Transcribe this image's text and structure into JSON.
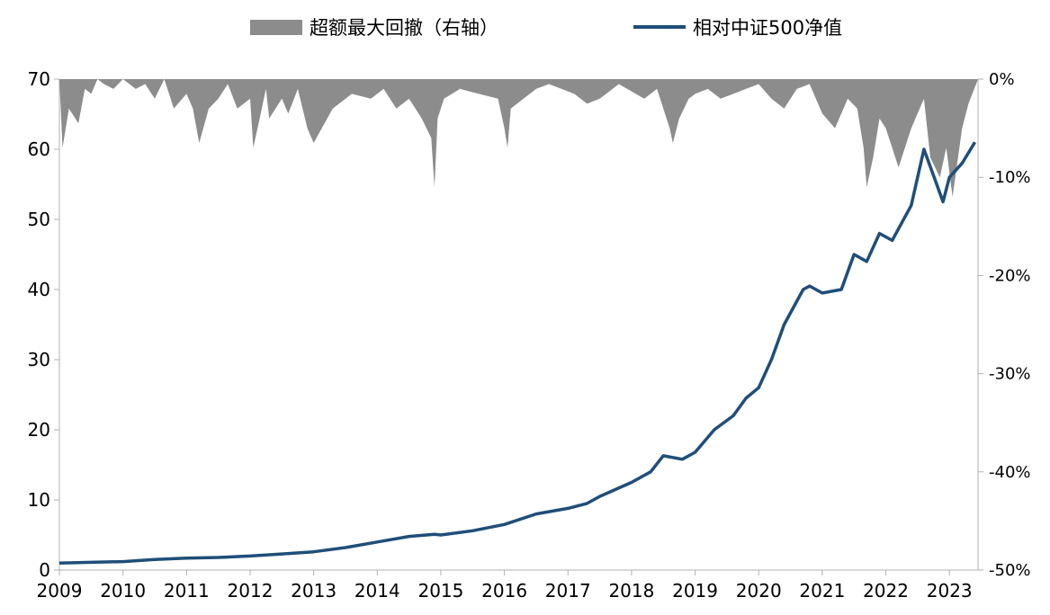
{
  "chart_data": {
    "type": "line",
    "legend": {
      "placement": "top-center",
      "items": [
        {
          "label": "超额最大回撤（右轴）",
          "kind": "area",
          "color": "#8c8c8c"
        },
        {
          "label": "相对中证500净值",
          "kind": "line",
          "color": "#1f4e79"
        }
      ]
    },
    "x_ticks": [
      "2009",
      "2010",
      "2011",
      "2012",
      "2013",
      "2014",
      "2015",
      "2016",
      "2017",
      "2018",
      "2019",
      "2020",
      "2021",
      "2022",
      "2023"
    ],
    "y_left": {
      "ylim": [
        0,
        70
      ],
      "ticks": [
        "0",
        "10",
        "20",
        "30",
        "40",
        "50",
        "60",
        "70"
      ]
    },
    "y_right": {
      "ylim": [
        -0.5,
        0
      ],
      "ticks": [
        "-50%",
        "-40%",
        "-30%",
        "-20%",
        "-10%",
        "0%"
      ]
    },
    "series": [
      {
        "name": "相对中证500净值",
        "axis": "left",
        "color": "#1f4e79",
        "x": [
          2009.0,
          2009.5,
          2010.0,
          2010.5,
          2011.0,
          2011.5,
          2012.0,
          2012.5,
          2013.0,
          2013.5,
          2014.0,
          2014.5,
          2014.9,
          2015.0,
          2015.5,
          2016.0,
          2016.5,
          2017.0,
          2017.3,
          2017.5,
          2018.0,
          2018.3,
          2018.5,
          2018.8,
          2019.0,
          2019.3,
          2019.6,
          2019.8,
          2020.0,
          2020.2,
          2020.4,
          2020.7,
          2020.8,
          2021.0,
          2021.3,
          2021.5,
          2021.7,
          2021.9,
          2022.1,
          2022.4,
          2022.6,
          2022.8,
          2022.9,
          2023.0,
          2023.2,
          2023.4
        ],
        "values": [
          1.0,
          1.1,
          1.2,
          1.5,
          1.7,
          1.8,
          2.0,
          2.3,
          2.6,
          3.2,
          4.0,
          4.8,
          5.1,
          5.0,
          5.6,
          6.5,
          8.0,
          8.8,
          9.5,
          10.5,
          12.5,
          14.0,
          16.3,
          15.8,
          16.8,
          20.0,
          22.0,
          24.5,
          26.0,
          30.0,
          35.0,
          40.0,
          40.5,
          39.5,
          40.0,
          45.0,
          44.0,
          48.0,
          47.0,
          52.0,
          60.0,
          55.0,
          52.5,
          56.0,
          58.0,
          61.0
        ]
      },
      {
        "name": "超额最大回撤（右轴）",
        "axis": "right",
        "type": "area",
        "color": "#8c8c8c",
        "x": [
          2009.0,
          2009.05,
          2009.15,
          2009.3,
          2009.4,
          2009.5,
          2009.6,
          2009.7,
          2009.85,
          2010.0,
          2010.2,
          2010.35,
          2010.5,
          2010.65,
          2010.8,
          2011.0,
          2011.1,
          2011.2,
          2011.35,
          2011.5,
          2011.65,
          2011.8,
          2012.0,
          2012.05,
          2012.15,
          2012.25,
          2012.3,
          2012.5,
          2012.6,
          2012.75,
          2012.9,
          2013.0,
          2013.3,
          2013.6,
          2013.9,
          2014.1,
          2014.3,
          2014.5,
          2014.7,
          2014.85,
          2014.9,
          2014.95,
          2015.05,
          2015.3,
          2015.6,
          2015.9,
          2016.0,
          2016.05,
          2016.1,
          2016.3,
          2016.5,
          2016.7,
          2016.9,
          2017.1,
          2017.3,
          2017.5,
          2017.8,
          2018.2,
          2018.4,
          2018.6,
          2018.65,
          2018.75,
          2018.9,
          2019.0,
          2019.2,
          2019.4,
          2019.6,
          2019.8,
          2020.0,
          2020.2,
          2020.4,
          2020.6,
          2020.8,
          2021.0,
          2021.2,
          2021.4,
          2021.55,
          2021.65,
          2021.7,
          2021.8,
          2021.9,
          2022.0,
          2022.2,
          2022.4,
          2022.6,
          2022.7,
          2022.85,
          2022.95,
          2023.05,
          2023.2,
          2023.3,
          2023.45
        ],
        "values": [
          0.0,
          -0.07,
          -0.03,
          -0.045,
          -0.01,
          -0.015,
          0.0,
          -0.005,
          -0.01,
          0.0,
          -0.01,
          -0.005,
          -0.02,
          0.0,
          -0.03,
          -0.015,
          -0.03,
          -0.065,
          -0.03,
          -0.02,
          -0.005,
          -0.03,
          -0.02,
          -0.07,
          -0.04,
          -0.01,
          -0.04,
          -0.02,
          -0.035,
          -0.01,
          -0.05,
          -0.065,
          -0.03,
          -0.015,
          -0.02,
          -0.01,
          -0.03,
          -0.02,
          -0.04,
          -0.06,
          -0.11,
          -0.04,
          -0.02,
          -0.01,
          -0.015,
          -0.02,
          -0.05,
          -0.07,
          -0.03,
          -0.02,
          -0.01,
          -0.005,
          -0.01,
          -0.015,
          -0.025,
          -0.02,
          -0.005,
          -0.02,
          -0.01,
          -0.05,
          -0.065,
          -0.04,
          -0.02,
          -0.015,
          -0.01,
          -0.02,
          -0.015,
          -0.01,
          -0.005,
          -0.02,
          -0.03,
          -0.01,
          -0.005,
          -0.035,
          -0.05,
          -0.02,
          -0.03,
          -0.07,
          -0.11,
          -0.08,
          -0.04,
          -0.05,
          -0.09,
          -0.05,
          -0.02,
          -0.08,
          -0.1,
          -0.07,
          -0.12,
          -0.05,
          -0.025,
          0.0
        ]
      }
    ]
  }
}
